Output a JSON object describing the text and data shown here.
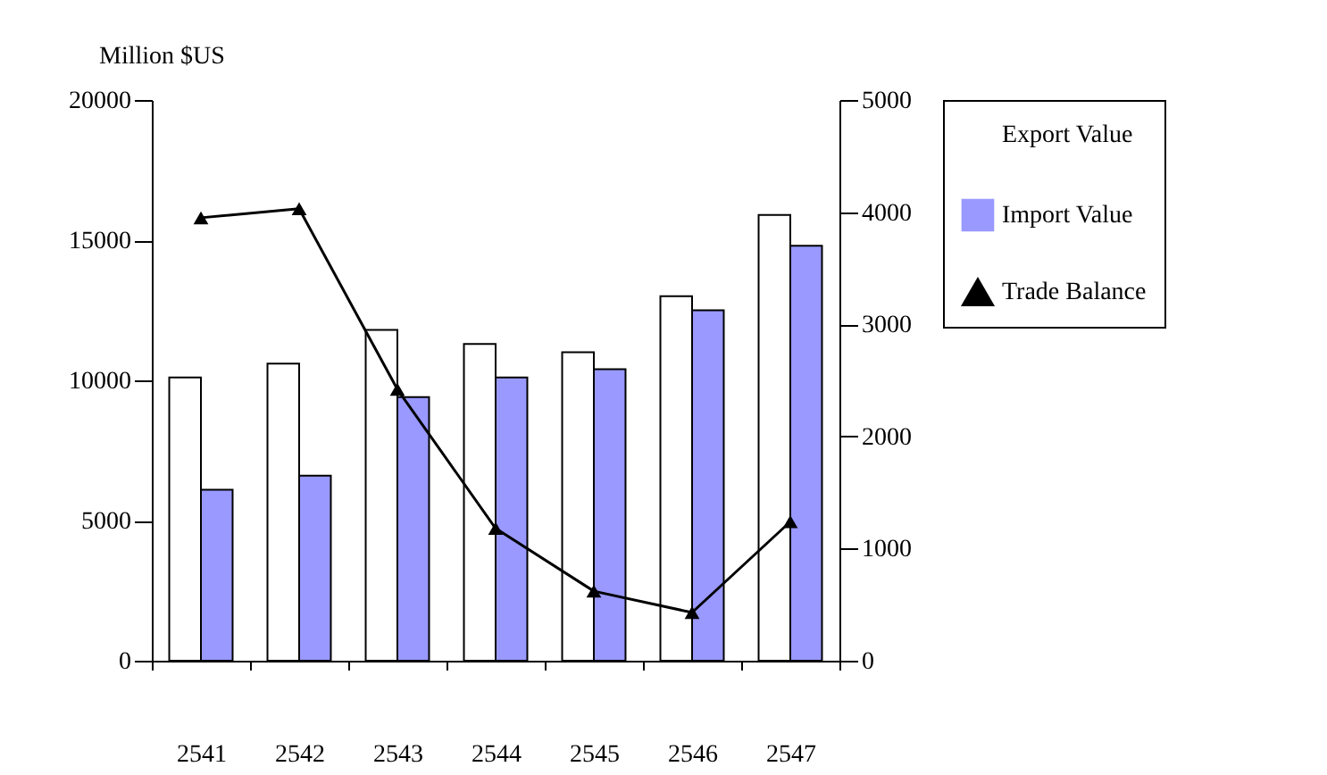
{
  "chart_data": {
    "type": "bar",
    "ylabel": "Million $US",
    "categories": [
      "2541",
      "2542",
      "2543",
      "2544",
      "2545",
      "2546",
      "2547"
    ],
    "series": [
      {
        "name": "Export Value",
        "color": "#ffffff",
        "values": [
          10100,
          10600,
          11800,
          11300,
          11000,
          13000,
          15900
        ]
      },
      {
        "name": "Import Value",
        "color": "#9999ff",
        "values": [
          6100,
          6600,
          9400,
          10100,
          10400,
          12500,
          14800
        ]
      },
      {
        "name": "Trade Balance",
        "type": "line",
        "axis": "y2",
        "color": "#000000",
        "marker": "triangle",
        "values": [
          3950,
          4030,
          2420,
          1180,
          620,
          430,
          1240
        ]
      }
    ],
    "ylim": [
      0,
      20000
    ],
    "yticks": [
      0,
      5000,
      10000,
      15000,
      20000
    ],
    "y2lim": [
      0,
      5000
    ],
    "y2ticks": [
      0,
      1000,
      2000,
      3000,
      4000,
      5000
    ],
    "grid": false,
    "legend": "right"
  }
}
